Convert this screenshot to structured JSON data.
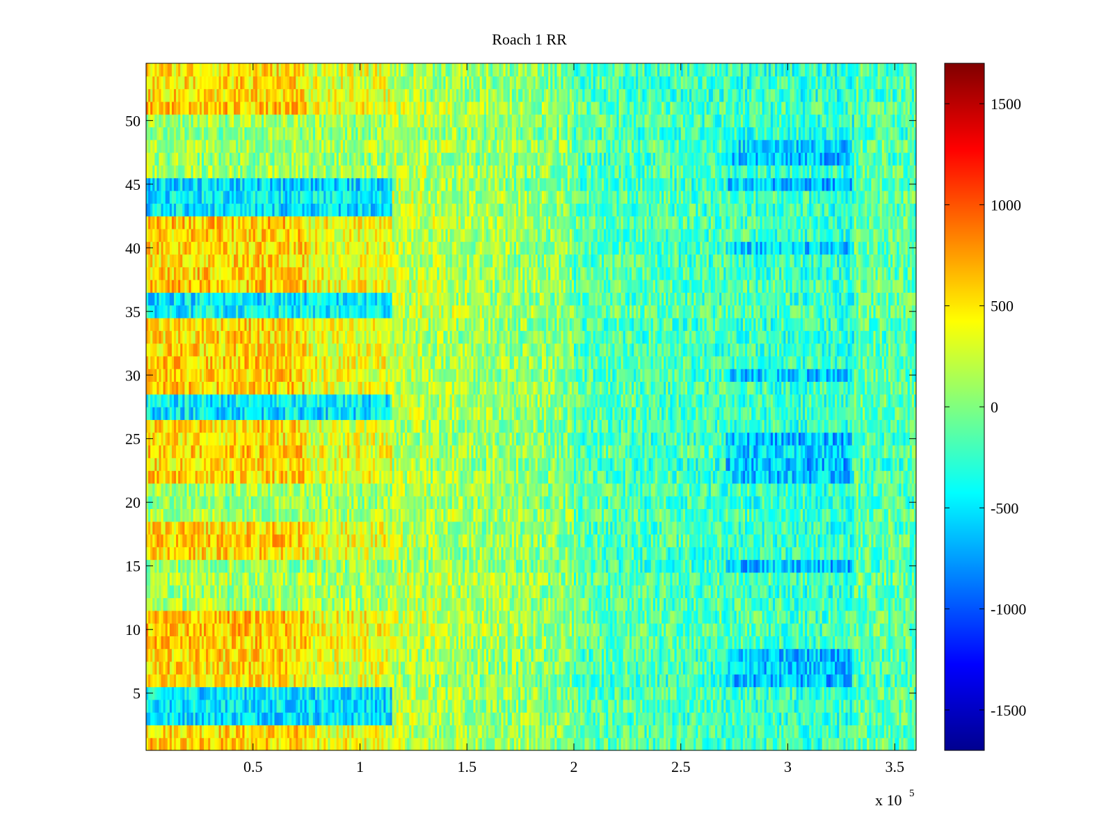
{
  "chart_data": {
    "type": "heatmap",
    "title": "Roach 1 RR",
    "xlabel": "",
    "ylabel": "",
    "x_multiplier_label": "x 10",
    "x_multiplier_exponent": "5",
    "xlim": [
      0,
      360000
    ],
    "ylim": [
      0.5,
      54.5
    ],
    "x_ticks": [
      50000,
      100000,
      150000,
      200000,
      250000,
      300000,
      350000
    ],
    "x_tick_labels": [
      "0.5",
      "1",
      "1.5",
      "2",
      "2.5",
      "3",
      "3.5"
    ],
    "y_ticks": [
      5,
      10,
      15,
      20,
      25,
      30,
      35,
      40,
      45,
      50
    ],
    "y_tick_labels": [
      "5",
      "10",
      "15",
      "20",
      "25",
      "30",
      "35",
      "40",
      "45",
      "50"
    ],
    "rows": 54,
    "colormap": "jet",
    "clim": [
      -1700,
      1700
    ],
    "colorbar": {
      "ticks": [
        1500,
        1000,
        500,
        0,
        -500,
        -1000,
        -1500
      ],
      "tick_labels": [
        "1500",
        "1000",
        "500",
        "0",
        "-500",
        "-1000",
        "-1500"
      ]
    },
    "grid": false,
    "description_of_values": "Each row is a channel; values in early segment (x < ~1.15e5) are high (300 to 1200) in rows 1-2, 6-11, 16-18, 22-26, 29-34, 37-42 and 51-54; elsewhere values mostly in -600 to 300, with lower values (-1000 to -500) around x 2.8e5-3.2e5.",
    "row_profiles": {
      "early_high_rows": [
        1,
        2,
        6,
        7,
        8,
        9,
        10,
        11,
        16,
        17,
        18,
        22,
        23,
        24,
        25,
        26,
        29,
        30,
        31,
        32,
        33,
        34,
        37,
        38,
        39,
        40,
        41,
        42,
        51,
        52,
        53,
        54
      ],
      "early_low_rows": [
        3,
        4,
        5,
        27,
        28,
        35,
        36,
        43,
        44,
        45
      ],
      "late_low_rows": [
        6,
        7,
        8,
        15,
        22,
        23,
        24,
        25,
        30,
        40,
        45,
        47,
        48
      ]
    }
  }
}
